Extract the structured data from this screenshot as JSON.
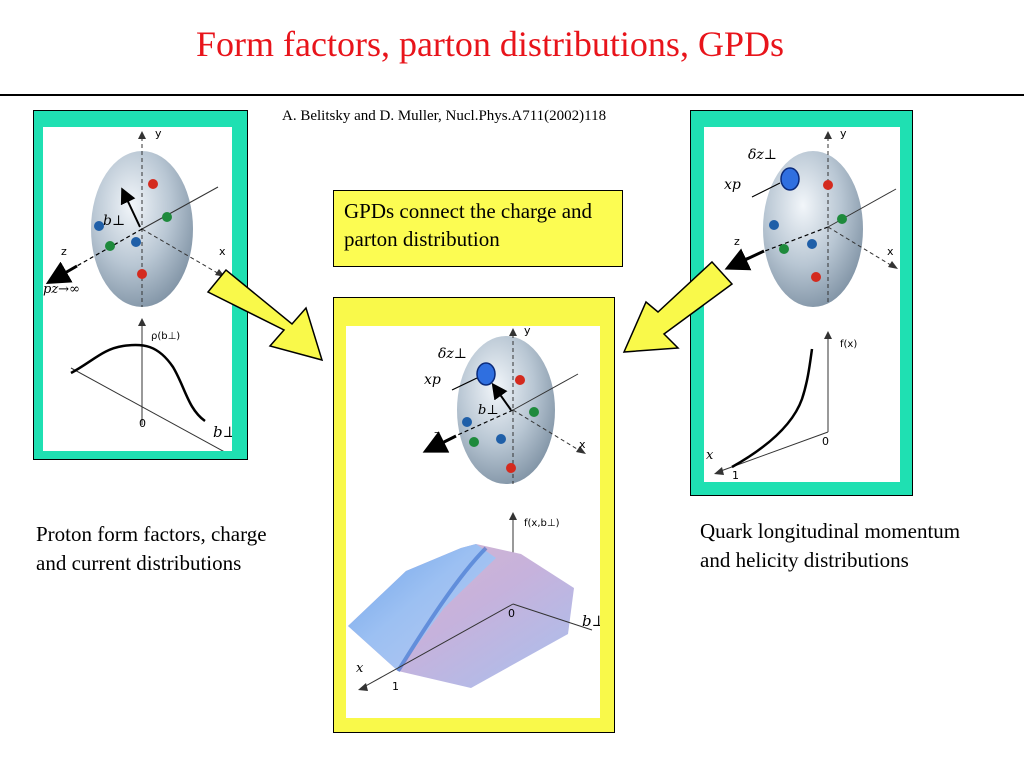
{
  "title": "Form factors, parton distributions, GPDs",
  "citation": "A. Belitsky and D. Muller, Nucl.Phys.A711(2002)118",
  "callout": "GPDs connect the charge and parton distribution",
  "left_panel": {
    "axis_y": "y",
    "axis_x": "x",
    "axis_z": "z",
    "b_perp": "b⊥",
    "pz_limit": "pz→∞",
    "rho_label": "ρ(b⊥)",
    "zero": "0",
    "b_perp_axis": "b⊥",
    "caption": "Proton form factors, charge and current distributions"
  },
  "right_panel": {
    "axis_y": "y",
    "axis_x": "x",
    "axis_z": "z",
    "delta_z": "δz⊥",
    "xp": "xp",
    "f_label": "f(x)",
    "zero": "0",
    "x_axis": "x",
    "one": "1",
    "caption": "Quark longitudinal momentum and helicity distributions"
  },
  "center_panel": {
    "axis_y": "y",
    "axis_x": "x",
    "axis_z": "z",
    "delta_z": "δz⊥",
    "xp": "xp",
    "b_perp": "b⊥",
    "f_label": "f(x,b⊥)",
    "zero": "0",
    "b_perp_axis": "b⊥",
    "x_axis": "x",
    "one": "1"
  },
  "colors": {
    "title": "#e8141b",
    "panel_green": "#1fe0b2",
    "panel_yellow": "#f9f94a",
    "quark_red": "#d42a1e",
    "quark_green": "#1e8a3c",
    "quark_blue": "#1f5fa8"
  }
}
